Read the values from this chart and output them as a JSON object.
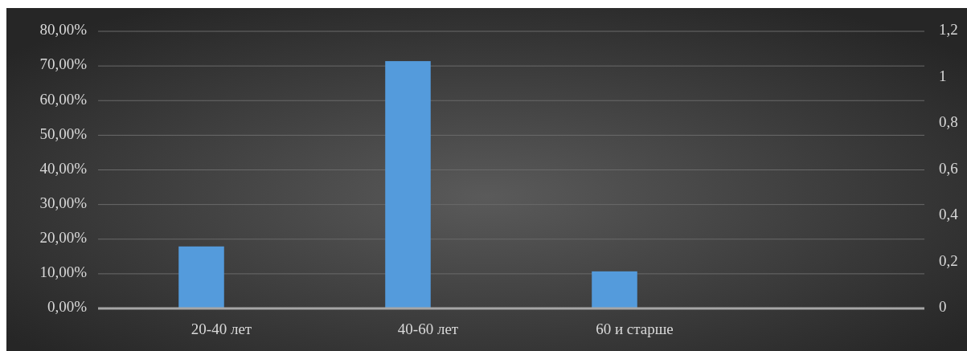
{
  "chart_data": {
    "type": "bar",
    "categories": [
      "20-40 лет",
      "40-60 лет",
      "60 и старше",
      null
    ],
    "series": [
      {
        "color": "#549bdc",
        "values": [
          17.9,
          71.4,
          10.7,
          null
        ]
      }
    ],
    "ylim": [
      0,
      80
    ],
    "yticks": [
      {
        "value": 0,
        "label": "0,00%"
      },
      {
        "value": 10,
        "label": "10,00%"
      },
      {
        "value": 20,
        "label": "20,00%"
      },
      {
        "value": 30,
        "label": "30,00%"
      },
      {
        "value": 40,
        "label": "40,00%"
      },
      {
        "value": 50,
        "label": "50,00%"
      },
      {
        "value": 60,
        "label": "60,00%"
      },
      {
        "value": 70,
        "label": "70,00%"
      },
      {
        "value": 80,
        "label": "80,00%"
      }
    ],
    "y2lim": [
      0,
      1.2
    ],
    "y2ticks": [
      0,
      {
        "value": 0.2,
        "label": "0,2"
      },
      {
        "value": 0.4,
        "label": "0,4"
      },
      {
        "value": 0.6,
        "label": "0,6"
      },
      {
        "value": 0.8,
        "label": "0,8"
      },
      1,
      {
        "value": 1.2,
        "label": "1,2"
      }
    ],
    "grid": "y"
  }
}
